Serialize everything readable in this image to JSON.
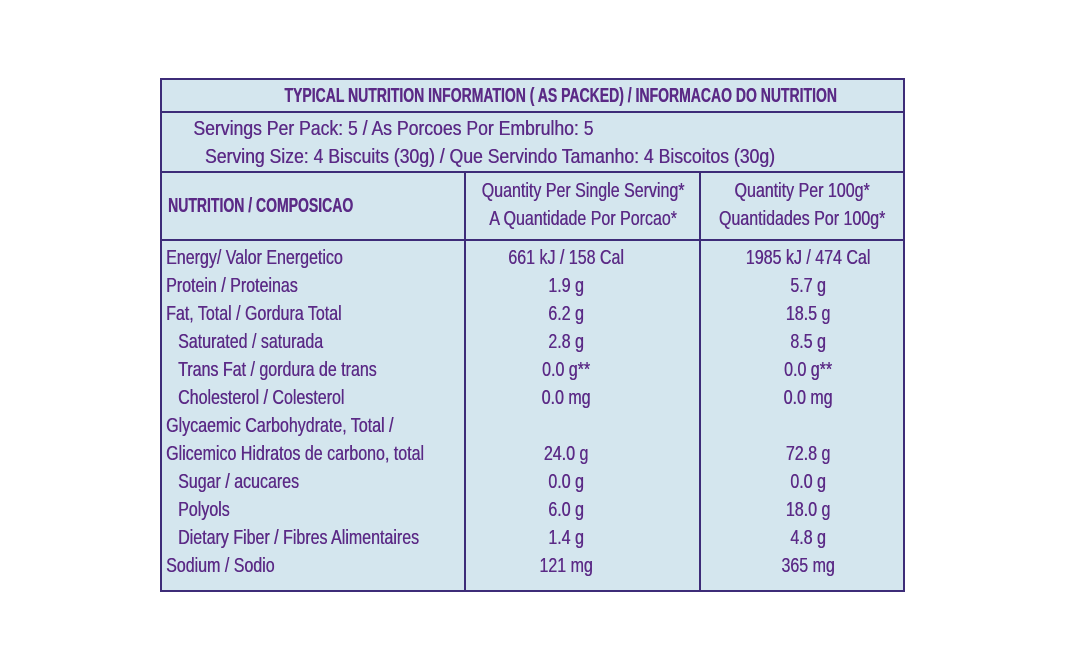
{
  "title": "TYPICAL NUTRITION INFORMATION ( AS PACKED) / INFORMACAO DO NUTRITION",
  "servings": [
    "Servings Per Pack: 5 / As Porcoes Por Embrulho: 5",
    "Serving Size: 4 Biscuits (30g) / Que Servindo Tamanho: 4 Biscoitos (30g)"
  ],
  "header": {
    "nutrient": "NUTRITION / COMPOSICAO",
    "per_serving": [
      "Quantity Per Single Serving*",
      "A Quantidade Por Porcao*"
    ],
    "per_100g": [
      "Quantity Per 100g*",
      "Quantidades Por 100g*"
    ]
  },
  "rows": [
    {
      "label": [
        "Energy/ Valor Energetico"
      ],
      "per_serving": "661 kJ / 158 Cal",
      "per_100g": "1985 kJ / 474 Cal"
    },
    {
      "label": [
        "Protein / Proteinas"
      ],
      "per_serving": "1.9 g",
      "per_100g": "5.7 g"
    },
    {
      "label": [
        "Fat, Total / Gordura Total"
      ],
      "per_serving": "6.2 g",
      "per_100g": "18.5 g"
    },
    {
      "label": [
        "Saturated / saturada"
      ],
      "per_serving": "2.8 g",
      "per_100g": "8.5 g"
    },
    {
      "label": [
        "Trans Fat / gordura de trans"
      ],
      "per_serving": "0.0 g**",
      "per_100g": "0.0 g**"
    },
    {
      "label": [
        "Cholesterol / Colesterol"
      ],
      "per_serving": "0.0 mg",
      "per_100g": "0.0 mg"
    },
    {
      "label": [
        "Glycaemic Carbohydrate, Total /",
        "Glicemico Hidratos de carbono, total"
      ],
      "per_serving": "24.0 g",
      "per_100g": "72.8 g"
    },
    {
      "label": [
        "Sugar / acucares"
      ],
      "per_serving": "0.0 g",
      "per_100g": "0.0 g"
    },
    {
      "label": [
        "Polyols"
      ],
      "per_serving": "6.0 g",
      "per_100g": "18.0 g"
    },
    {
      "label": [
        "Dietary Fiber / Fibres Alimentaires"
      ],
      "per_serving": "1.4 g",
      "per_100g": "4.8 g"
    },
    {
      "label": [
        "Sodium / Sodio"
      ],
      "per_serving": "121 mg",
      "per_100g": "365 mg"
    }
  ]
}
